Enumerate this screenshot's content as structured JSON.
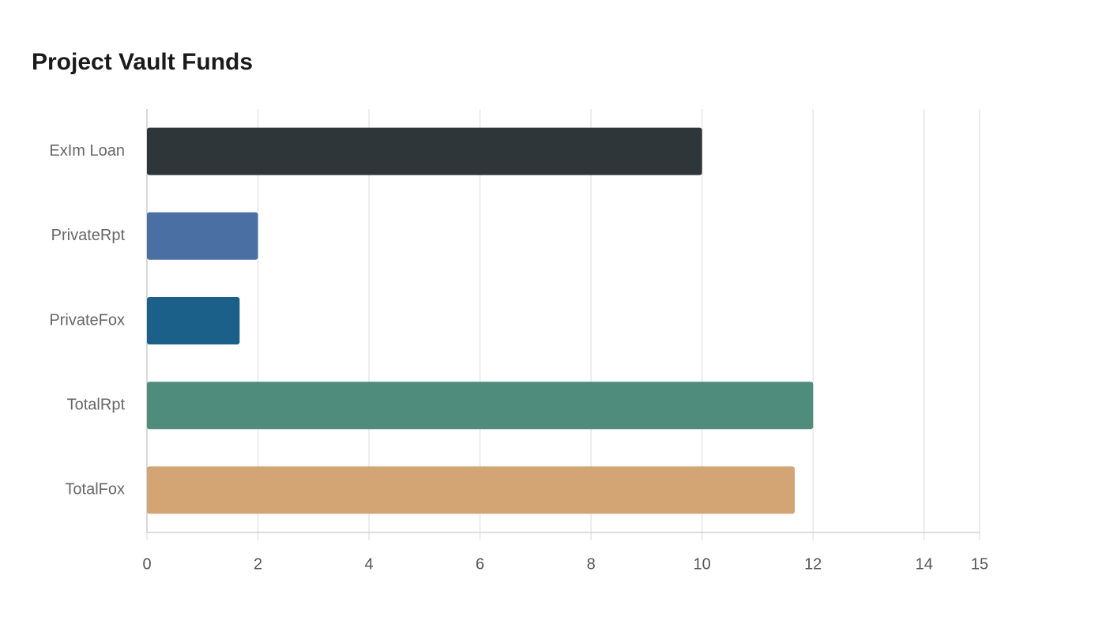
{
  "chart_data": {
    "type": "bar",
    "orientation": "horizontal",
    "title": "Project Vault Funds",
    "categories": [
      "ExIm Loan",
      "PrivateRpt",
      "PrivateFox",
      "TotalRpt",
      "TotalFox"
    ],
    "values": [
      10,
      2,
      1.67,
      12,
      11.67
    ],
    "colors": [
      "#2e3639",
      "#4a6fa2",
      "#1a6089",
      "#4f8c7b",
      "#d4a574"
    ],
    "xlim": [
      0,
      15
    ],
    "xticks": [
      0,
      2,
      4,
      6,
      8,
      10,
      12,
      14,
      15
    ],
    "grid": true
  }
}
